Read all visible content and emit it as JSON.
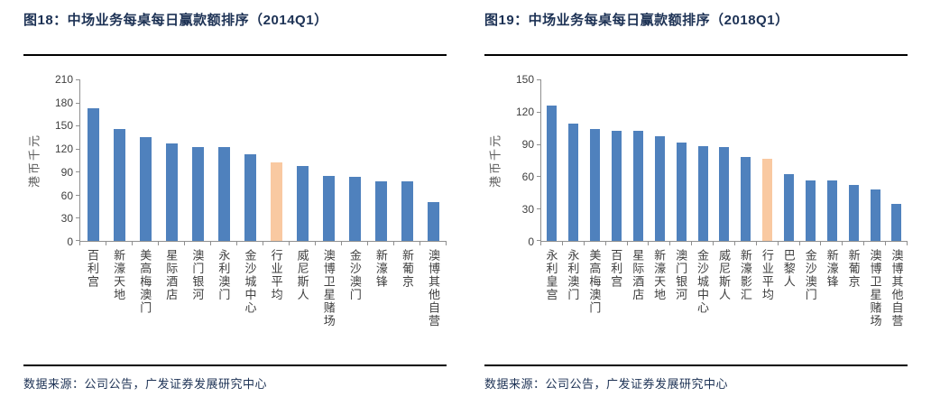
{
  "colors": {
    "bar": "#4F81BD",
    "highlight": "#F9C9A1",
    "axis_line": "#8F8F8F",
    "title_text": "#1C3154",
    "divider": "#000000",
    "tick_text": "#3F3F3F",
    "axis_title_text": "#595959",
    "background": "#FFFFFF"
  },
  "chart_data": [
    {
      "id": "fig18",
      "type": "bar",
      "title": "图18：中场业务每桌每日赢款额排序（2014Q1）",
      "ylabel": "港币千元",
      "xlabel": "",
      "ylim": [
        0,
        210
      ],
      "ytick_step": 30,
      "yticks": [
        0,
        30,
        60,
        90,
        120,
        150,
        180,
        210
      ],
      "grid": false,
      "legend": false,
      "categories": [
        "百利宫",
        "新濠天地",
        "美高梅澳门",
        "星际酒店",
        "澳门银河",
        "永利澳门",
        "金沙城中心",
        "行业平均",
        "威尼斯人",
        "澳博卫星赌场",
        "金沙澳门",
        "新濠锋",
        "新葡京",
        "澳博其他自营"
      ],
      "values": [
        172,
        145,
        135,
        127,
        122,
        122,
        113,
        102,
        97,
        85,
        83,
        78,
        77,
        50
      ],
      "highlight_index": 7,
      "highlight_label": "行业平均",
      "source": "数据来源：公司公告，广发证券发展研究中心"
    },
    {
      "id": "fig19",
      "type": "bar",
      "title": "图19：中场业务每桌每日赢款额排序（2018Q1）",
      "ylabel": "港币千元",
      "xlabel": "",
      "ylim": [
        0,
        150
      ],
      "ytick_step": 30,
      "yticks": [
        0,
        30,
        60,
        90,
        120,
        150
      ],
      "grid": false,
      "legend": false,
      "categories": [
        "永利皇宫",
        "永利澳门",
        "美高梅澳门",
        "百利宫",
        "星际酒店",
        "新濠天地",
        "澳门银河",
        "金沙城中心",
        "威尼斯人",
        "新濠影汇",
        "行业平均",
        "巴黎人",
        "金沙澳门",
        "新濠锋",
        "新葡京",
        "澳博卫星赌场",
        "澳博其他自营"
      ],
      "values": [
        126,
        109,
        104,
        102,
        102,
        97,
        91,
        88,
        87,
        78,
        76,
        62,
        56,
        56,
        52,
        48,
        34
      ],
      "highlight_index": 10,
      "highlight_label": "行业平均",
      "source": "数据来源：公司公告，广发证券发展研究中心"
    }
  ]
}
